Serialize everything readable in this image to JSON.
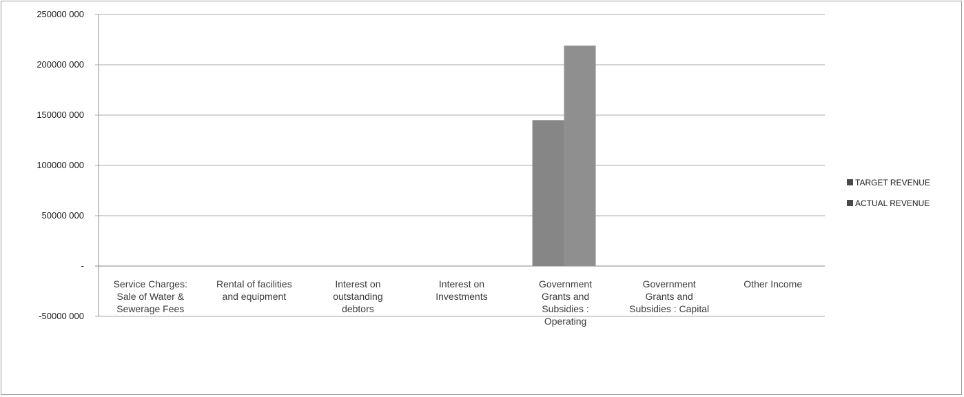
{
  "chart_data": {
    "type": "bar",
    "categories": [
      "Service Charges: Sale of Water & Sewerage Fees",
      "Rental of facilities and equipment",
      "Interest on outstanding debtors",
      "Interest on Investments",
      "Government Grants and Subsidies : Operating",
      "Government Grants and Subsidies : Capital",
      "Other Income"
    ],
    "category_lines": [
      [
        "Service Charges:",
        "Sale of Water &",
        "Sewerage Fees"
      ],
      [
        "Rental of facilities",
        "and equipment"
      ],
      [
        "Interest on",
        "outstanding",
        "debtors"
      ],
      [
        "Interest on",
        "Investments"
      ],
      [
        "Government",
        "Grants and",
        "Subsidies  :",
        "Operating"
      ],
      [
        "Government",
        "Grants and",
        "Subsidies  : Capital"
      ],
      [
        "Other Income"
      ]
    ],
    "series": [
      {
        "name": "TARGET REVENUE",
        "values": [
          0,
          0,
          0,
          0,
          145000000,
          0,
          0
        ],
        "color": "#868686"
      },
      {
        "name": "ACTUAL REVENUE",
        "values": [
          0,
          0,
          0,
          0,
          219000000,
          0,
          0
        ],
        "color": "#8f8f8f"
      }
    ],
    "ylim": [
      -50000000,
      250000000
    ],
    "yticks": [
      250000000,
      200000000,
      150000000,
      100000000,
      50000000,
      0,
      -50000000
    ],
    "ytick_labels": [
      "250000 000",
      "200000 000",
      "150000 000",
      "100000 000",
      "50000 000",
      "-",
      "-50000 000"
    ],
    "grid": true,
    "legend_position": "right",
    "title": "",
    "xlabel": "",
    "ylabel": ""
  }
}
